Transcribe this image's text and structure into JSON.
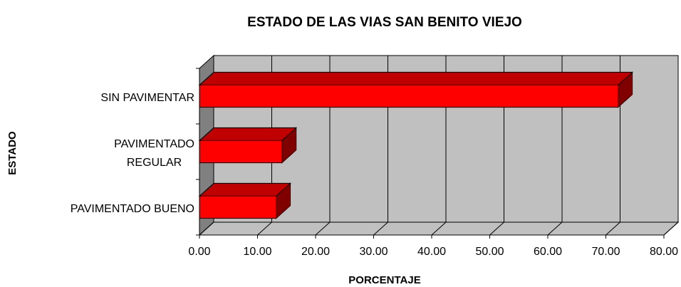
{
  "chart_data": {
    "type": "bar3d_horizontal",
    "title": "ESTADO DE LAS VIAS SAN BENITO VIEJO",
    "x_label": "PORCENTAJE",
    "y_label": "ESTADO",
    "categories": [
      "PAVIMENTADO BUENO",
      "PAVIMENTADO\nREGULAR",
      "SIN PAVIMENTAR"
    ],
    "values": [
      13.2,
      14.2,
      72.1
    ],
    "color": "#ff0000",
    "xlim": [
      0,
      80
    ],
    "xticks": [
      {
        "value": 0,
        "label": "0.00"
      },
      {
        "value": 10,
        "label": "10.00"
      },
      {
        "value": 20,
        "label": "20.00"
      },
      {
        "value": 30,
        "label": "30.00"
      },
      {
        "value": 40,
        "label": "40.00"
      },
      {
        "value": 50,
        "label": "50.00"
      },
      {
        "value": 60,
        "label": "60.00"
      },
      {
        "value": 70,
        "label": "70.00"
      },
      {
        "value": 80,
        "label": "80.00"
      }
    ],
    "grid": true
  }
}
